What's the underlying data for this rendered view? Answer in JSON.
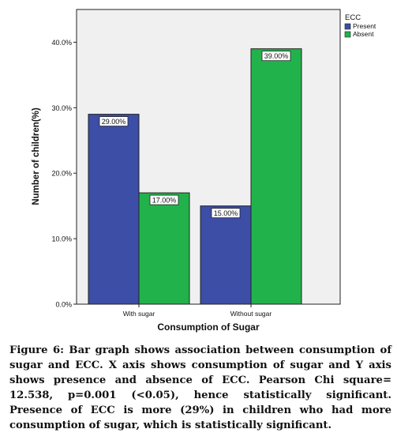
{
  "chart_data": {
    "type": "bar",
    "categories": [
      "With sugar",
      "Without sugar"
    ],
    "series": [
      {
        "name": "Present",
        "values": [
          29.0,
          15.0
        ],
        "labels": [
          "29.00%",
          "15.00%"
        ],
        "color": "#3c4ea6"
      },
      {
        "name": "Absent",
        "values": [
          17.0,
          39.0
        ],
        "labels": [
          "17.00%",
          "39.00%"
        ],
        "color": "#22b24c"
      }
    ],
    "title": "",
    "xlabel": "Consumption of Sugar",
    "ylabel": "Number of children(%)",
    "ylim": [
      0,
      45
    ],
    "yticks": [
      0,
      10,
      20,
      30,
      40
    ],
    "ytick_labels": [
      "0.0%",
      "10.0%",
      "20.0%",
      "30.0%",
      "40.0%"
    ],
    "legend_title": "ECC",
    "legend_position": "top-right-outside",
    "grid": false,
    "plot_background": "#f0f0f0"
  },
  "caption": "Figure 6: Bar graph shows association between consumption of sugar and ECC. X axis shows consumption of sugar and Y axis shows presence and absence of ECC. Pearson Chi square= 12.538, p=0.001 (<0.05), hence statistically significant. Presence of ECC is more (29%) in children who had more consumption of sugar, which is statistically significant."
}
